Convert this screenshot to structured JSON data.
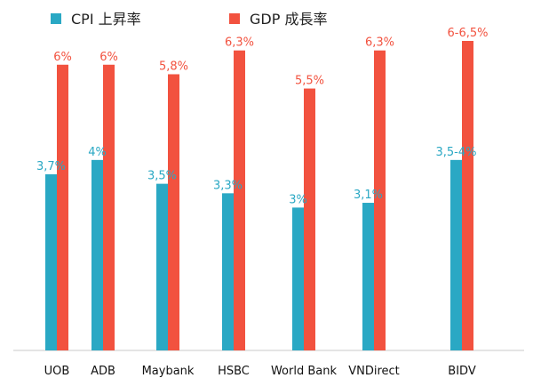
{
  "chart_data": {
    "type": "bar",
    "categories": [
      "UOB",
      "ADB",
      "Maybank",
      "HSBC",
      "World Bank",
      "VNDirect",
      "BIDV"
    ],
    "series": [
      {
        "name": "CPI 上昇率",
        "color": "#2aa8c4",
        "values": [
          3.7,
          4.0,
          3.5,
          3.3,
          3.0,
          3.1,
          4.0
        ],
        "labels": [
          "3,7%",
          "4%",
          "3,5%",
          "3,3%",
          "3%",
          "3,1%",
          "3,5-4%"
        ]
      },
      {
        "name": "GDP 成長率",
        "color": "#f2523f",
        "values": [
          6.0,
          6.0,
          5.8,
          6.3,
          5.5,
          6.3,
          6.5
        ],
        "labels": [
          "6%",
          "6%",
          "5,8%",
          "6,3%",
          "5,5%",
          "6,3%",
          "6-6,5%"
        ]
      }
    ],
    "ylim": [
      0,
      6.5
    ],
    "grid": false,
    "legend_position": "top-left"
  }
}
